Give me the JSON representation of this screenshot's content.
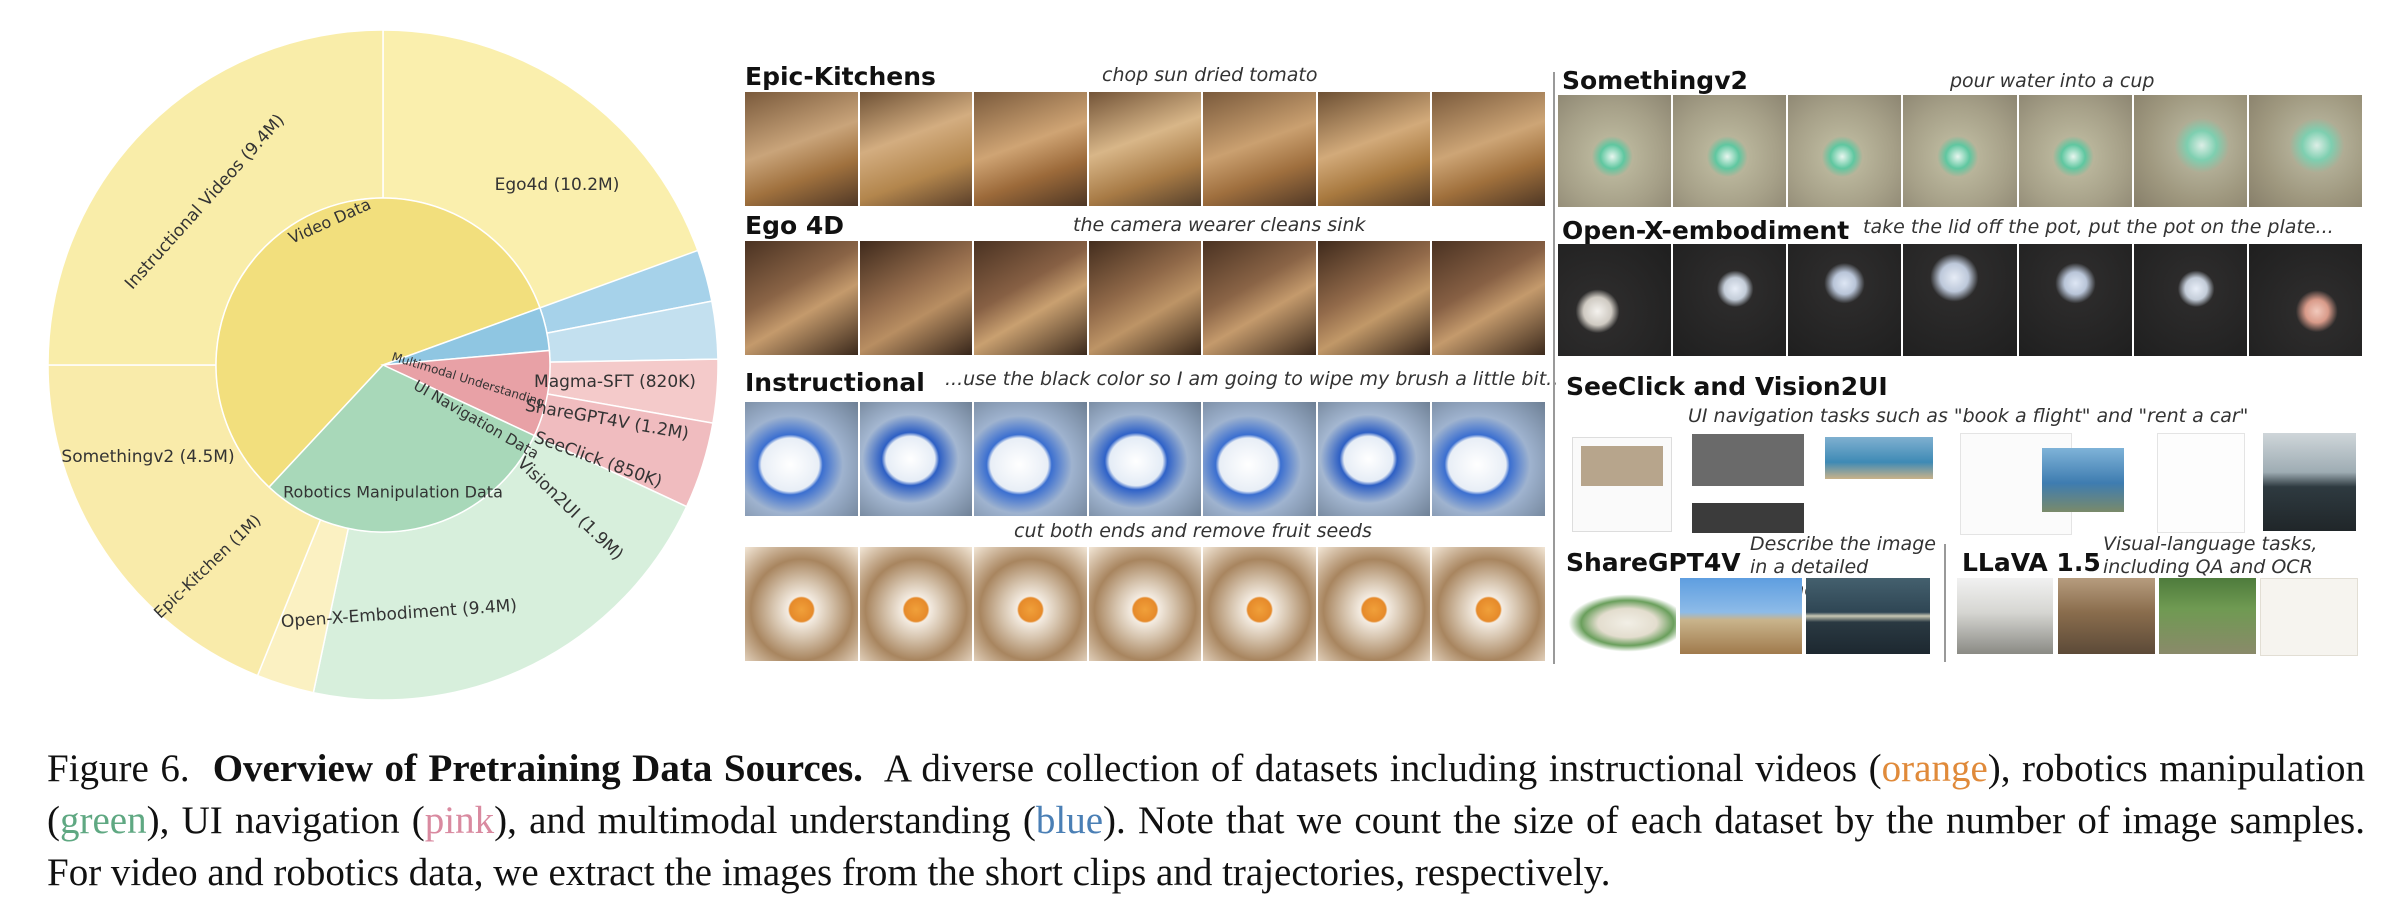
{
  "chart_data": {
    "type": "sunburst",
    "inner": [
      {
        "label": "Video Data",
        "color": "#f2df7d"
      },
      {
        "label": "Multimodal Understanding",
        "color": "#8fc6e2"
      },
      {
        "label": "UI Navigation Data",
        "color": "#e8a1a6"
      },
      {
        "label": "Robotics Manipulation Data",
        "color": "#a8d8b9"
      }
    ],
    "outer": [
      {
        "label": "Ego4d (10.2M)",
        "parent": "Video Data",
        "color": "#faefad"
      },
      {
        "label": "Magma-SFT (820K)",
        "parent": "Multimodal Understanding",
        "color": "#a6d2ea"
      },
      {
        "label": "ShareGPT4V (1.2M)",
        "parent": "Multimodal Understanding",
        "color": "#c3e0ef"
      },
      {
        "label": "SeeClick (850K)",
        "parent": "UI Navigation Data",
        "color": "#f4caca"
      },
      {
        "label": "Vision2UI (1.9M)",
        "parent": "UI Navigation Data",
        "color": "#f0bcbf"
      },
      {
        "label": "Open-X-Embodiment (9.4M)",
        "parent": "Robotics Manipulation Data",
        "color": "#d7efdc"
      },
      {
        "label": "Epic-Kitchen (1M)",
        "parent": "Video Data",
        "color": "#fbf1c2"
      },
      {
        "label": "Somethingv2 (4.5M)",
        "parent": "Video Data",
        "color": "#f9ebaa"
      },
      {
        "label": "Instructional Videos (9.4M)",
        "parent": "Video Data",
        "color": "#f9eda9"
      }
    ]
  },
  "panels": {
    "epic": {
      "title": "Epic-Kitchens",
      "caption": "chop sun dried tomato"
    },
    "ego": {
      "title": "Ego 4D",
      "caption": "the camera wearer cleans sink"
    },
    "instr": {
      "title": "Instructional",
      "caption": "...use the black color so I am going to wipe my brush a little bit..",
      "caption2": "cut both ends and remove fruit seeds"
    },
    "something": {
      "title": "Somethingv2",
      "caption": "pour water into a cup"
    },
    "openx": {
      "title": "Open-X-embodiment",
      "caption": "take the lid off the pot, put the pot on the plate..."
    },
    "seeclick": {
      "title": "SeeClick and Vision2UI",
      "caption": "UI navigation tasks such as \"book a flight\" and \"rent a car\""
    },
    "sharegpt": {
      "title": "ShareGPT4V",
      "caption": "Describe the image in a  detailed manner"
    },
    "llava": {
      "title": "LLaVA 1.5",
      "caption": "Visual-language tasks, including QA and OCR"
    }
  },
  "caption": {
    "label": "Figure 6.",
    "title": "Overview of Pretraining Data Sources.",
    "p1": "A diverse collection of datasets including instructional videos (",
    "w1": "orange",
    "p2": "), robotics manipulation (",
    "w2": "green",
    "p3": "), UI navigation (",
    "w3": "pink",
    "p4": "), and multimodal understanding (",
    "w4": "blue",
    "p5": ").  Note that we count the size of each dataset by the number of image samples. For video and robotics data, we extract the images from the short clips and trajectories, respectively."
  }
}
